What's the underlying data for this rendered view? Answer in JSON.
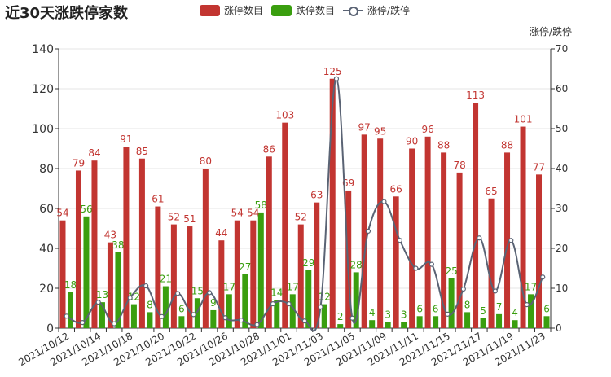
{
  "chart_data": {
    "type": "bar",
    "title": "近30天涨跌停家数",
    "categories": [
      "2021/10/12",
      "2021/10/13",
      "2021/10/14",
      "2021/10/15",
      "2021/10/18",
      "2021/10/19",
      "2021/10/20",
      "2021/10/21",
      "2021/10/22",
      "2021/10/25",
      "2021/10/26",
      "2021/10/27",
      "2021/10/28",
      "2021/10/29",
      "2021/11/01",
      "2021/11/02",
      "2021/11/03",
      "2021/11/04",
      "2021/11/05",
      "2021/11/08",
      "2021/11/09",
      "2021/11/10",
      "2021/11/11",
      "2021/11/12",
      "2021/11/15",
      "2021/11/16",
      "2021/11/17",
      "2021/11/18",
      "2021/11/19",
      "2021/11/22",
      "2021/11/23"
    ],
    "series": [
      {
        "name": "涨停数目",
        "color": "#c23531",
        "axis": "left",
        "values": [
          54,
          79,
          84,
          43,
          91,
          85,
          61,
          52,
          51,
          80,
          44,
          54,
          54,
          86,
          103,
          52,
          63,
          125,
          69,
          97,
          95,
          66,
          90,
          96,
          88,
          78,
          113,
          65,
          88,
          101,
          77
        ]
      },
      {
        "name": "跌停数目",
        "color": "#3a9e0f",
        "axis": "left",
        "values": [
          18,
          56,
          13,
          38,
          12,
          8,
          21,
          6,
          15,
          9,
          17,
          27,
          58,
          14,
          17,
          29,
          12,
          2,
          28,
          4,
          3,
          3,
          6,
          6,
          25,
          8,
          5,
          7,
          4,
          17,
          6
        ]
      },
      {
        "name": "涨停/跌停",
        "color": "#5a6374",
        "axis": "right",
        "type": "line",
        "values": [
          3,
          1.4,
          6.5,
          1.1,
          7.6,
          10.6,
          2.9,
          8.7,
          3.4,
          8.9,
          2.6,
          2,
          0.9,
          6.1,
          6.1,
          1.8,
          5.3,
          62.5,
          2.5,
          24.3,
          31.7,
          22,
          15,
          16,
          3.5,
          9.8,
          22.6,
          9.3,
          22,
          5.9,
          12.8
        ]
      }
    ],
    "xlabel": "",
    "ylabel": "",
    "y2label": "涨停/跌停",
    "ylim": [
      0,
      140
    ],
    "y2lim": [
      0,
      70
    ],
    "yticks": [
      0,
      20,
      40,
      60,
      80,
      100,
      120,
      140
    ],
    "y2ticks": [
      0,
      10,
      20,
      30,
      40,
      50,
      60,
      70
    ],
    "xtick_labels_shown": [
      "2021/10/12",
      "2021/10/14",
      "2021/10/18",
      "2021/10/20",
      "2021/10/22",
      "2021/10/26",
      "2021/10/28",
      "2021/11/01",
      "2021/11/03",
      "2021/11/05",
      "2021/11/09",
      "2021/11/11",
      "2021/11/15",
      "2021/11/17",
      "2021/11/19",
      "2021/11/23"
    ],
    "legend": "top-center",
    "grid": true
  }
}
